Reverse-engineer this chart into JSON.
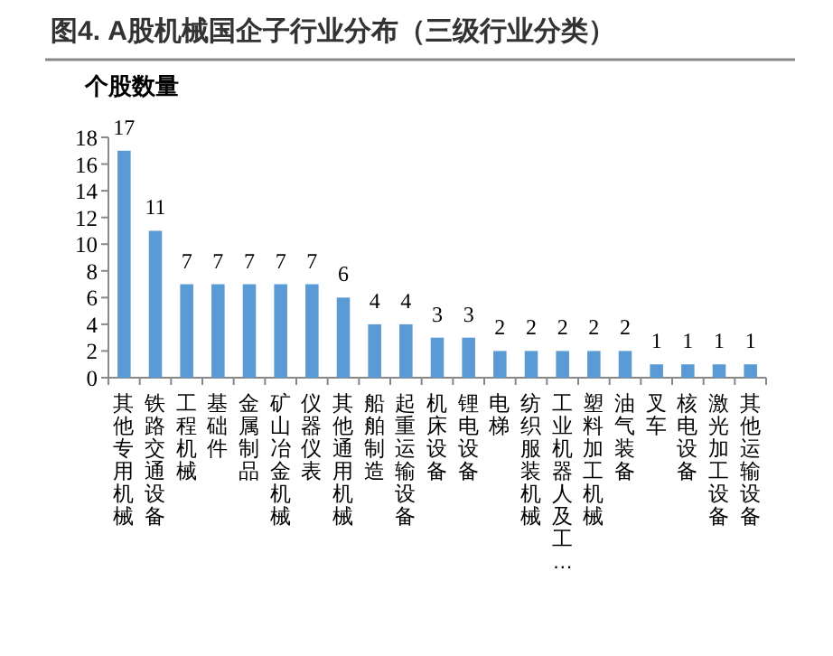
{
  "chart_data": {
    "type": "bar",
    "title": "图4. A股机械国企子行业分布（三级行业分类）",
    "ylabel": "个股数量",
    "categories": [
      "其他专用机械",
      "铁路交通设备",
      "工程机械",
      "基础件",
      "金属制品",
      "矿山冶金机械",
      "仪器仪表",
      "其他通用机械",
      "船舶制造",
      "起重运输设备",
      "机床设备",
      "锂电设备",
      "电梯",
      "纺织服装机械",
      "工业机器人及工…",
      "塑料加工机械",
      "油气装备",
      "叉车",
      "核电设备",
      "激光加工设备",
      "其他运输设备"
    ],
    "values": [
      17,
      11,
      7,
      7,
      7,
      7,
      7,
      6,
      4,
      4,
      3,
      3,
      2,
      2,
      2,
      2,
      2,
      1,
      1,
      1,
      1
    ],
    "color": "#5b9bd5",
    "ylim": [
      0,
      18
    ],
    "yticks": [
      0,
      2,
      4,
      6,
      8,
      10,
      12,
      14,
      16,
      18
    ],
    "data_labels": true
  }
}
